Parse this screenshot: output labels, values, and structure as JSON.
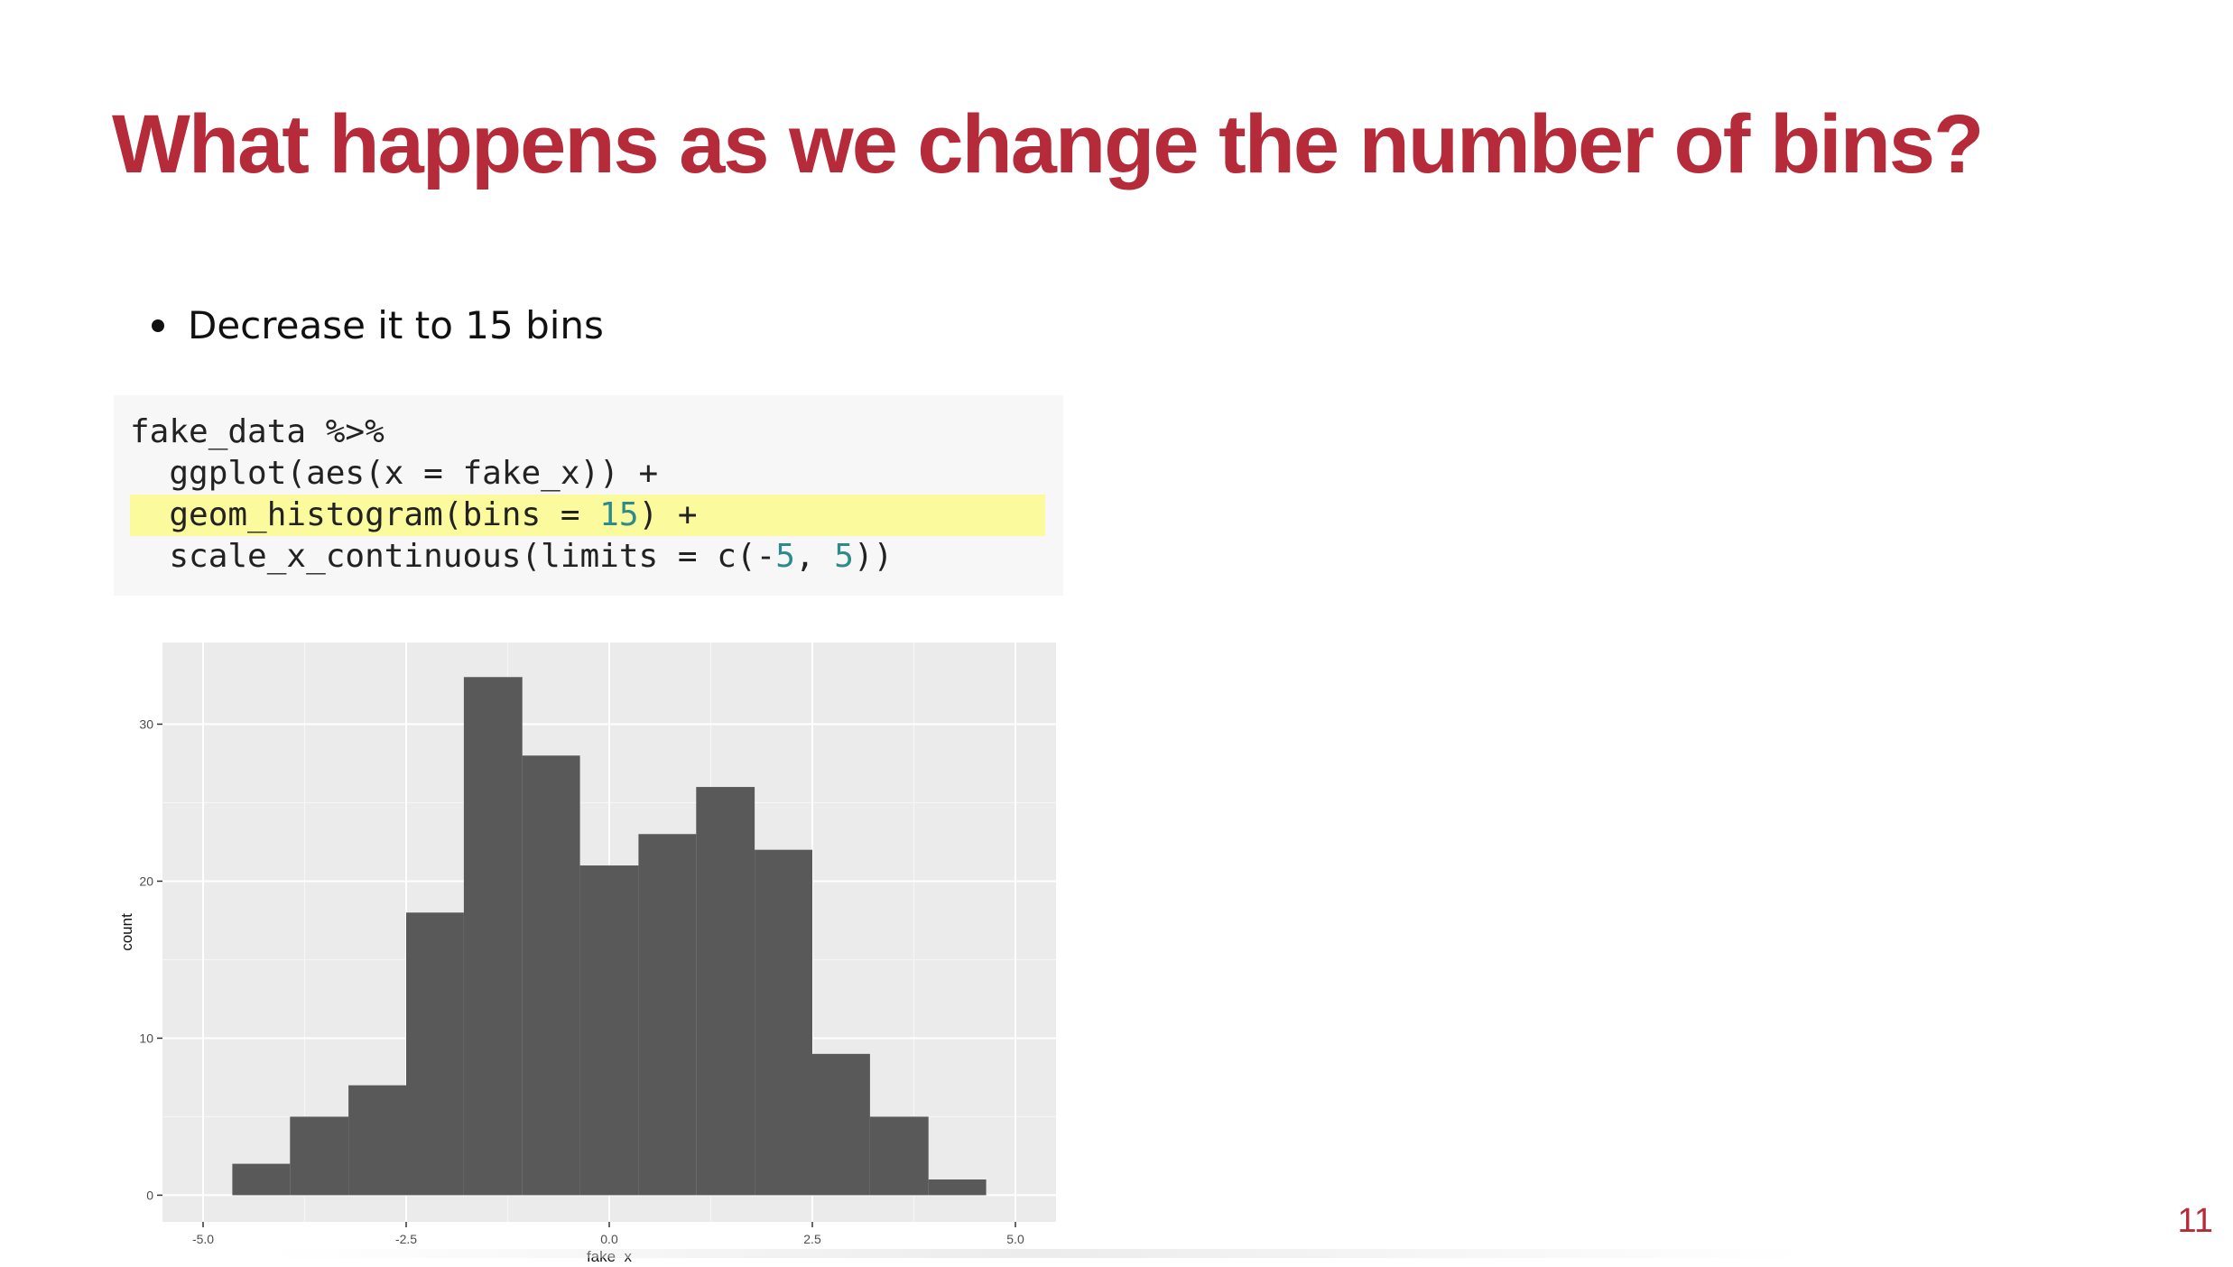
{
  "slide": {
    "title": "What happens as we change the number of bins?",
    "page_number": "11"
  },
  "bullets": [
    {
      "text": "Decrease it to 15 bins"
    }
  ],
  "code": {
    "line1": "fake_data %>%",
    "line2": "  ggplot(aes(x = fake_x)) +",
    "line3_pre": "  geom_histogram(bins = ",
    "line3_num": "15",
    "line3_post": ") +",
    "line4_pre": "  scale_x_continuous(limits = c(-",
    "line4_num1": "5",
    "line4_mid": ", ",
    "line4_num2": "5",
    "line4_post": "))"
  },
  "colors": {
    "title": "#b52b3a",
    "code_highlight": "#fbfa9d",
    "code_number": "#2e8b8b",
    "panel_bg": "#ebebeb",
    "bar_fill": "#595959"
  },
  "chart_data": {
    "type": "bar",
    "xlabel": "fake_x",
    "ylabel": "count",
    "xlim": [
      -5.5,
      5.5
    ],
    "ylim": [
      -1.7,
      35.2
    ],
    "x_ticks": [
      -5.0,
      -2.5,
      0.0,
      2.5,
      5.0
    ],
    "x_tick_labels": [
      "-5.0",
      "-2.5",
      "0.0",
      "2.5",
      "5.0"
    ],
    "y_ticks": [
      0,
      10,
      20,
      30
    ],
    "y_tick_labels": [
      "0",
      "10",
      "20",
      "30"
    ],
    "grid": true,
    "bins": [
      {
        "x0": -4.64,
        "x1": -3.93,
        "count": 2
      },
      {
        "x0": -3.93,
        "x1": -3.21,
        "count": 5
      },
      {
        "x0": -3.21,
        "x1": -2.5,
        "count": 7
      },
      {
        "x0": -2.5,
        "x1": -1.79,
        "count": 18
      },
      {
        "x0": -1.79,
        "x1": -1.07,
        "count": 33
      },
      {
        "x0": -1.07,
        "x1": -0.36,
        "count": 28
      },
      {
        "x0": -0.36,
        "x1": 0.36,
        "count": 21
      },
      {
        "x0": 0.36,
        "x1": 1.07,
        "count": 23
      },
      {
        "x0": 1.07,
        "x1": 1.79,
        "count": 26
      },
      {
        "x0": 1.79,
        "x1": 2.5,
        "count": 22
      },
      {
        "x0": 2.5,
        "x1": 3.21,
        "count": 9
      },
      {
        "x0": 3.21,
        "x1": 3.93,
        "count": 5
      },
      {
        "x0": 3.93,
        "x1": 4.64,
        "count": 1
      }
    ]
  }
}
